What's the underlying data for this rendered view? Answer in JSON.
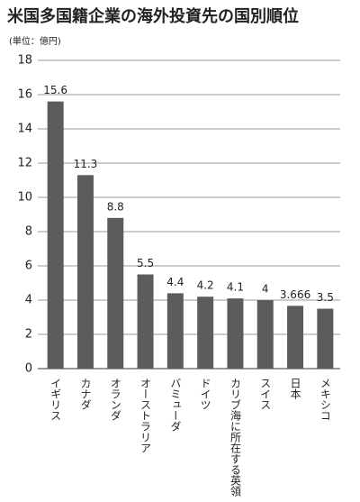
{
  "chart_data": {
    "type": "bar",
    "title": "米国多国籍企業の海外投資先の国別順位",
    "y_label": "(単位：億円)",
    "categories": [
      "イギリス",
      "カナダ",
      "オランダ",
      "オーストラリア",
      "バミューダ",
      "ドイツ",
      "カリブ海に所在する英領",
      "スイス",
      "日本",
      "メキシコ"
    ],
    "values": [
      15.6,
      11.3,
      8.8,
      5.5,
      4.4,
      4.2,
      4.1,
      4,
      3.666,
      3.5
    ],
    "color": "#5c5c5c",
    "ylim": [
      0,
      18
    ],
    "yticks": [
      0,
      2,
      4,
      6,
      8,
      10,
      12,
      14,
      16,
      18
    ],
    "grid": true
  }
}
